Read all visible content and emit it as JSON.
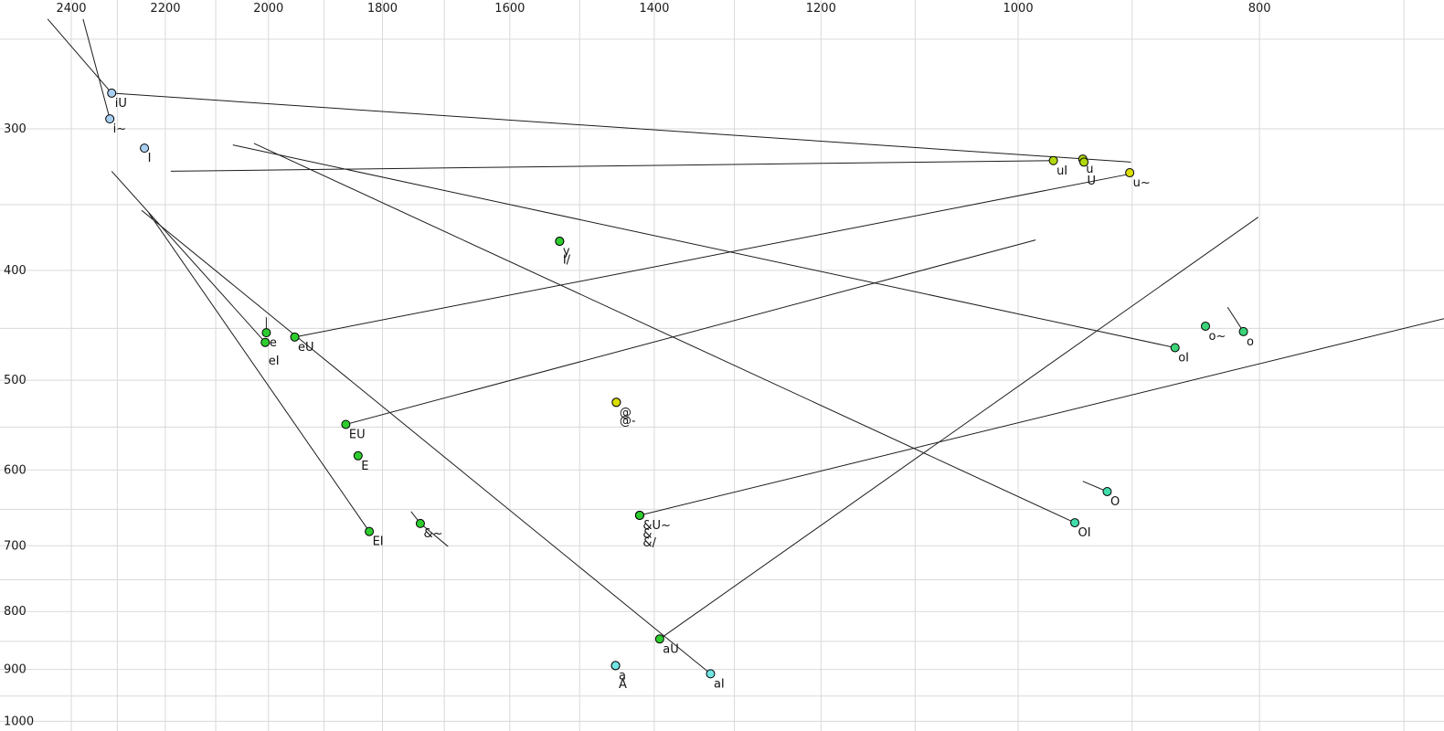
{
  "page": {
    "background": "#ffffff"
  },
  "chart_data": {
    "type": "scatter",
    "title": "",
    "xlabel": "",
    "ylabel": "",
    "legend": null,
    "grid": true,
    "x_axis": {
      "unit": "Hz (F2)",
      "scale": "log",
      "direction": "reversed",
      "tick_labels": [
        2400,
        2200,
        2000,
        1800,
        1600,
        1400,
        1200,
        1000,
        800
      ],
      "minor_gridline_step": 100,
      "minor_gridline_range": [
        2400,
        700
      ],
      "range_visible": [
        2480,
        670
      ]
    },
    "y_axis": {
      "unit": "Hz (F1)",
      "scale": "log",
      "direction": "down",
      "tick_labels": [
        300,
        400,
        500,
        600,
        700,
        800,
        900,
        1000
      ],
      "minor_gridline_step": 50,
      "minor_gridline_range": [
        250,
        1000
      ],
      "range_visible": [
        240,
        1030
      ]
    },
    "colors": {
      "blue": "#a8cef0",
      "green": "#2ecc2e",
      "jade": "#3bd478",
      "mint": "#40dcaa",
      "cyan": "#72e4e4",
      "yellowgreen": "#b0d80e",
      "yellow": "#dade00"
    },
    "points": [
      {
        "label": "iU",
        "f2": 2312,
        "f1": 279,
        "color": "blue",
        "label_row": 0,
        "trajectories": [
          [
            2453,
            240
          ],
          [
            901,
            321
          ]
        ]
      },
      {
        "label": "i~",
        "f2": 2316,
        "f1": 294,
        "color": "blue",
        "label_row": 0,
        "trajectories": [
          [
            2374,
            240
          ]
        ]
      },
      {
        "label": "I",
        "f2": 2243,
        "f1": 312,
        "color": "blue",
        "label_row": 0,
        "trajectories": []
      },
      {
        "label": "y",
        "f2": 1528,
        "f1": 377,
        "color": "green",
        "label_row": 0,
        "trajectories": []
      },
      {
        "label": "I/",
        "f2": 1528,
        "f1": 377,
        "color": "green",
        "label_row": 1,
        "trajectories": []
      },
      {
        "label": "e",
        "f2": 2004,
        "f1": 454,
        "color": "green",
        "label_row": 0,
        "trajectories": [
          [
            2004,
            440
          ]
        ]
      },
      {
        "label": "eI",
        "f2": 2006,
        "f1": 463,
        "color": "green",
        "label_row": 1,
        "trajectories": [
          [
            2312,
            327
          ]
        ]
      },
      {
        "label": "eU",
        "f2": 1952,
        "f1": 458,
        "color": "green",
        "label_row": 0,
        "trajectories": [
          [
            903,
            329
          ]
        ]
      },
      {
        "label": "EU",
        "f2": 1862,
        "f1": 547,
        "color": "green",
        "label_row": 0,
        "trajectories": [
          [
            984,
            376
          ]
        ]
      },
      {
        "label": "E",
        "f2": 1841,
        "f1": 583,
        "color": "green",
        "label_row": 0,
        "trajectories": []
      },
      {
        "label": "EI",
        "f2": 1822,
        "f1": 680,
        "color": "green",
        "label_row": 0,
        "trajectories": [
          [
            2234,
            356
          ]
        ]
      },
      {
        "label": "&~",
        "f2": 1738,
        "f1": 669,
        "color": "green",
        "label_row": 0,
        "trajectories": [
          [
            1753,
            653
          ],
          [
            1694,
            701
          ]
        ]
      },
      {
        "label": "&U~",
        "f2": 1419,
        "f1": 658,
        "color": "green",
        "label_row": 0,
        "trajectories": [
          [
            674,
            441
          ]
        ]
      },
      {
        "label": "&",
        "f2": 1419,
        "f1": 658,
        "color": "green",
        "label_row": 1,
        "trajectories": []
      },
      {
        "label": "&/",
        "f2": 1419,
        "f1": 658,
        "color": "green",
        "label_row": 2,
        "trajectories": []
      },
      {
        "label": "@",
        "f2": 1450,
        "f1": 523,
        "color": "yellow",
        "label_row": 0,
        "trajectories": []
      },
      {
        "label": "@-",
        "f2": 1450,
        "f1": 523,
        "color": "yellow",
        "label_row": 1,
        "trajectories": []
      },
      {
        "label": "aU",
        "f2": 1393,
        "f1": 846,
        "color": "green",
        "label_row": 0,
        "trajectories": [
          [
            801,
            359
          ]
        ]
      },
      {
        "label": "a",
        "f2": 1451,
        "f1": 893,
        "color": "cyan",
        "label_row": 0,
        "trajectories": []
      },
      {
        "label": "A",
        "f2": 1451,
        "f1": 893,
        "color": "cyan",
        "label_row": 1,
        "trajectories": []
      },
      {
        "label": "aI",
        "f2": 1329,
        "f1": 908,
        "color": "cyan",
        "label_row": 0,
        "trajectories": [
          [
            2249,
            354
          ]
        ]
      },
      {
        "label": "uI",
        "f2": 968,
        "f1": 320,
        "color": "yellowgreen",
        "label_row": 0,
        "trajectories": [
          [
            2189,
            327
          ]
        ]
      },
      {
        "label": "u",
        "f2": 942,
        "f1": 319,
        "color": "yellowgreen",
        "label_row": 0,
        "trajectories": []
      },
      {
        "label": "U",
        "f2": 941,
        "f1": 321,
        "color": "yellowgreen",
        "label_row": 1,
        "trajectories": []
      },
      {
        "label": "u~",
        "f2": 902,
        "f1": 328,
        "color": "yellow",
        "label_row": 0,
        "trajectories": []
      },
      {
        "label": "o~",
        "f2": 841,
        "f1": 448,
        "color": "jade",
        "label_row": 0,
        "trajectories": []
      },
      {
        "label": "o",
        "f2": 812,
        "f1": 453,
        "color": "jade",
        "label_row": 0,
        "trajectories": [
          [
            824,
            431
          ]
        ]
      },
      {
        "label": "oI",
        "f2": 865,
        "f1": 468,
        "color": "jade",
        "label_row": 0,
        "trajectories": [
          [
            2067,
            310
          ]
        ]
      },
      {
        "label": "O",
        "f2": 921,
        "f1": 627,
        "color": "mint",
        "label_row": 0,
        "trajectories": [
          [
            942,
            614
          ]
        ]
      },
      {
        "label": "OI",
        "f2": 949,
        "f1": 668,
        "color": "mint",
        "label_row": 0,
        "trajectories": [
          [
            2027,
            309
          ]
        ]
      }
    ]
  }
}
